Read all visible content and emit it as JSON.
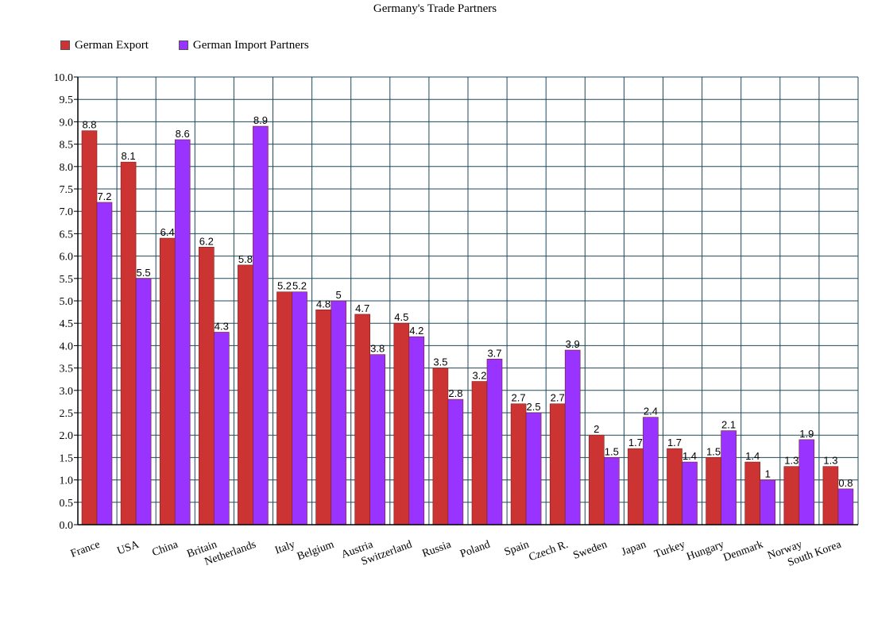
{
  "chart_data": {
    "type": "bar",
    "title": "Germany's Trade Partners",
    "xlabel": "",
    "ylabel": "",
    "ylim": [
      0,
      10
    ],
    "ytick_step": 0.5,
    "grid": true,
    "legend_position": "top-left",
    "categories": [
      "France",
      "USA",
      "China",
      "Britain",
      "Netherlands",
      "Italy",
      "Belgium",
      "Austria",
      "Switzerland",
      "Russia",
      "Poland",
      "Spain",
      "Czech R.",
      "Sweden",
      "Japan",
      "Turkey",
      "Hungary",
      "Denmark",
      "Norway",
      "South Korea"
    ],
    "series": [
      {
        "name": "German Export",
        "color": "#cc3333",
        "values": [
          8.8,
          8.1,
          6.4,
          6.2,
          5.8,
          5.2,
          4.8,
          4.7,
          4.5,
          3.5,
          3.2,
          2.7,
          2.7,
          2,
          1.7,
          1.7,
          1.5,
          1.4,
          1.3,
          1.3
        ]
      },
      {
        "name": "German Import Partners",
        "color": "#9933ff",
        "values": [
          7.2,
          5.5,
          8.6,
          4.3,
          8.9,
          5.2,
          5,
          3.8,
          4.2,
          2.8,
          3.7,
          2.5,
          3.9,
          1.5,
          2.4,
          1.4,
          2.1,
          1,
          1.9,
          0.8
        ]
      }
    ],
    "colors": {
      "grid": "#1f4a5c",
      "axis": "#000000"
    }
  }
}
